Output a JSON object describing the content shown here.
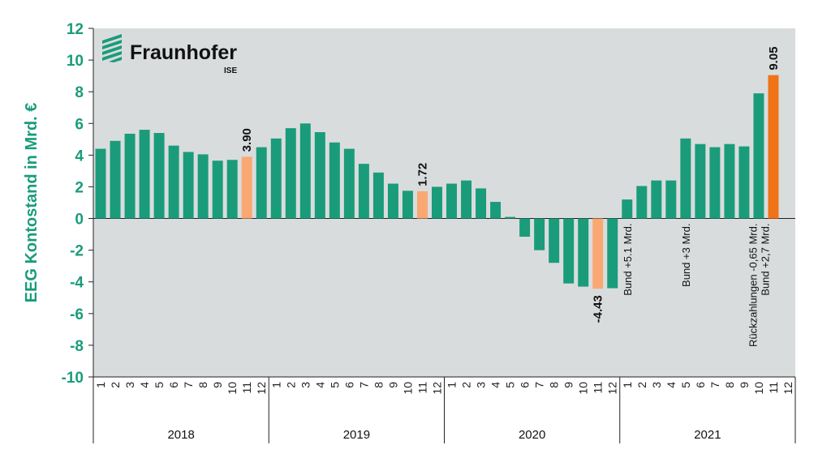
{
  "chart_data": {
    "type": "bar",
    "ylabel": "EEG Kontostand in Mrd. €",
    "ylim": [
      -10,
      12
    ],
    "ytick_step": 2,
    "years": [
      "2018",
      "2019",
      "2020",
      "2021"
    ],
    "month_labels": [
      "1",
      "2",
      "3",
      "4",
      "5",
      "6",
      "7",
      "8",
      "9",
      "10",
      "11",
      "12"
    ],
    "series": [
      {
        "year": "2018",
        "values": [
          4.4,
          4.9,
          5.35,
          5.6,
          5.4,
          4.6,
          4.2,
          4.05,
          3.65,
          3.7,
          3.9,
          4.5
        ]
      },
      {
        "year": "2019",
        "values": [
          5.05,
          5.7,
          6.0,
          5.45,
          4.8,
          4.4,
          3.45,
          2.9,
          2.2,
          1.75,
          1.72,
          2.0
        ]
      },
      {
        "year": "2020",
        "values": [
          2.2,
          2.4,
          1.9,
          1.05,
          0.1,
          -1.15,
          -2.0,
          -2.8,
          -4.1,
          -4.3,
          -4.43,
          -4.4
        ]
      },
      {
        "year": "2021",
        "values": [
          1.2,
          2.05,
          2.4,
          2.4,
          5.05,
          4.7,
          4.5,
          4.7,
          4.55,
          7.9,
          9.05,
          null
        ]
      }
    ],
    "highlights": [
      {
        "year": "2018",
        "month": 11,
        "label": "3.90",
        "color": "#f9a873"
      },
      {
        "year": "2019",
        "month": 11,
        "label": "1.72",
        "color": "#f9a873"
      },
      {
        "year": "2020",
        "month": 11,
        "label": "-4.43",
        "color": "#f9a873"
      },
      {
        "year": "2021",
        "month": 11,
        "label": "9.05",
        "color": "#f07317"
      }
    ],
    "annotations": [
      {
        "year": "2021",
        "month": 1,
        "lines": [
          "Bund +5.1 Mrd."
        ]
      },
      {
        "year": "2021",
        "month": 5,
        "lines": [
          "Bund +3 Mrd."
        ]
      },
      {
        "year": "2021",
        "month": 10,
        "lines": [
          "Rückzahlungen -0,65 Mrd.",
          "Bund +2,7 Mrd."
        ]
      }
    ]
  },
  "colors": {
    "bar": "#1a9c7b",
    "plot_bg": "#d9dcdd",
    "axis_text": "#1a9c7b"
  },
  "logo": {
    "name": "Fraunhofer",
    "sub": "ISE"
  }
}
